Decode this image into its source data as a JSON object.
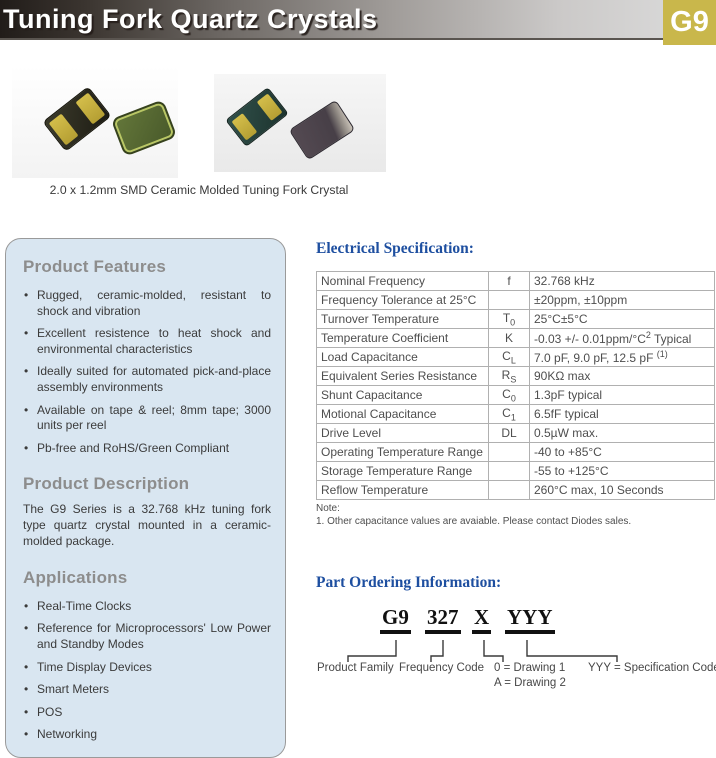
{
  "header": {
    "title": "Tuning Fork Quartz Crystals",
    "badge": "G9"
  },
  "photos": {
    "caption": "2.0 x 1.2mm SMD Ceramic Molded Tuning Fork Crystal"
  },
  "sidebar": {
    "features_title": "Product Features",
    "features": [
      "Rugged, ceramic-molded, resistant to shock and vibration",
      "Excellent resistence to heat shock and environmental characteristics",
      "Ideally suited for automated pick-and-place assembly environments",
      "Available on tape & reel; 8mm tape; 3000 units per reel",
      "Pb-free and RoHS/Green Compliant"
    ],
    "description_title": "Product Description",
    "description": "The G9 Series is a 32.768 kHz tuning fork type quartz crystal mounted in a ceramic-molded package.",
    "applications_title": "Applications",
    "applications": [
      "Real-Time Clocks",
      "Reference for Microprocessors' Low Power and Standby Modes",
      "Time Display Devices",
      "Smart Meters",
      "POS",
      "Networking"
    ]
  },
  "spec": {
    "title": "Electrical Specification:",
    "rows": [
      {
        "param": "Nominal Frequency",
        "sym": "f",
        "sym_sub": "",
        "val": "32.768 kHz",
        "val_sup": "",
        "val_post": ""
      },
      {
        "param": "Frequency Tolerance at 25°C",
        "sym": "",
        "sym_sub": "",
        "val": "±20ppm, ±10ppm",
        "val_sup": "",
        "val_post": ""
      },
      {
        "param": "Turnover Temperature",
        "sym": "T",
        "sym_sub": "0",
        "val": "25°C±5°C",
        "val_sup": "",
        "val_post": ""
      },
      {
        "param": "Temperature Coefficient",
        "sym": "K",
        "sym_sub": "",
        "val": "-0.03 +/- 0.01ppm/°C",
        "val_sup": "2",
        "val_post": " Typical"
      },
      {
        "param": "Load Capacitance",
        "sym": "C",
        "sym_sub": "L",
        "val": "7.0 pF, 9.0 pF, 12.5 pF ",
        "val_sup": "(1)",
        "val_post": ""
      },
      {
        "param": "Equivalent Series Resistance",
        "sym": "R",
        "sym_sub": "S",
        "val": "90KΩ max",
        "val_sup": "",
        "val_post": ""
      },
      {
        "param": "Shunt Capacitance",
        "sym": "C",
        "sym_sub": "0",
        "val": "1.3pF typical",
        "val_sup": "",
        "val_post": ""
      },
      {
        "param": "Motional Capacitance",
        "sym": "C",
        "sym_sub": "1",
        "val": "6.5fF typical",
        "val_sup": "",
        "val_post": ""
      },
      {
        "param": "Drive Level",
        "sym": "DL",
        "sym_sub": "",
        "val": " 0.5µW max.",
        "val_sup": "",
        "val_post": ""
      },
      {
        "param": "Operating Temperature Range",
        "sym": "",
        "sym_sub": "",
        "val": "-40 to +85°C",
        "val_sup": "",
        "val_post": ""
      },
      {
        "param": "Storage Temperature Range",
        "sym": "",
        "sym_sub": "",
        "val": "-55 to +125°C",
        "val_sup": "",
        "val_post": ""
      },
      {
        "param": "Reflow Temperature",
        "sym": "",
        "sym_sub": "",
        "val": "260°C max, 10 Seconds",
        "val_sup": "",
        "val_post": ""
      }
    ],
    "note_label": "Note:",
    "note": "1. Other capacitance values are avaiable. Please contact Diodes sales."
  },
  "ordering": {
    "title": "Part Ordering Information:",
    "codes": [
      "G9",
      "327",
      "X",
      "YYY"
    ],
    "labels": [
      "Product Family",
      "Frequency Code",
      "0 = Drawing 1",
      "A = Drawing 2",
      "YYY = Specification Code"
    ]
  },
  "colors": {
    "badge_olive": "#c9b74b",
    "heading_blue": "#1e4fa0",
    "panel_blue": "#d9e6f1",
    "pad_gold": "#c9b340"
  }
}
